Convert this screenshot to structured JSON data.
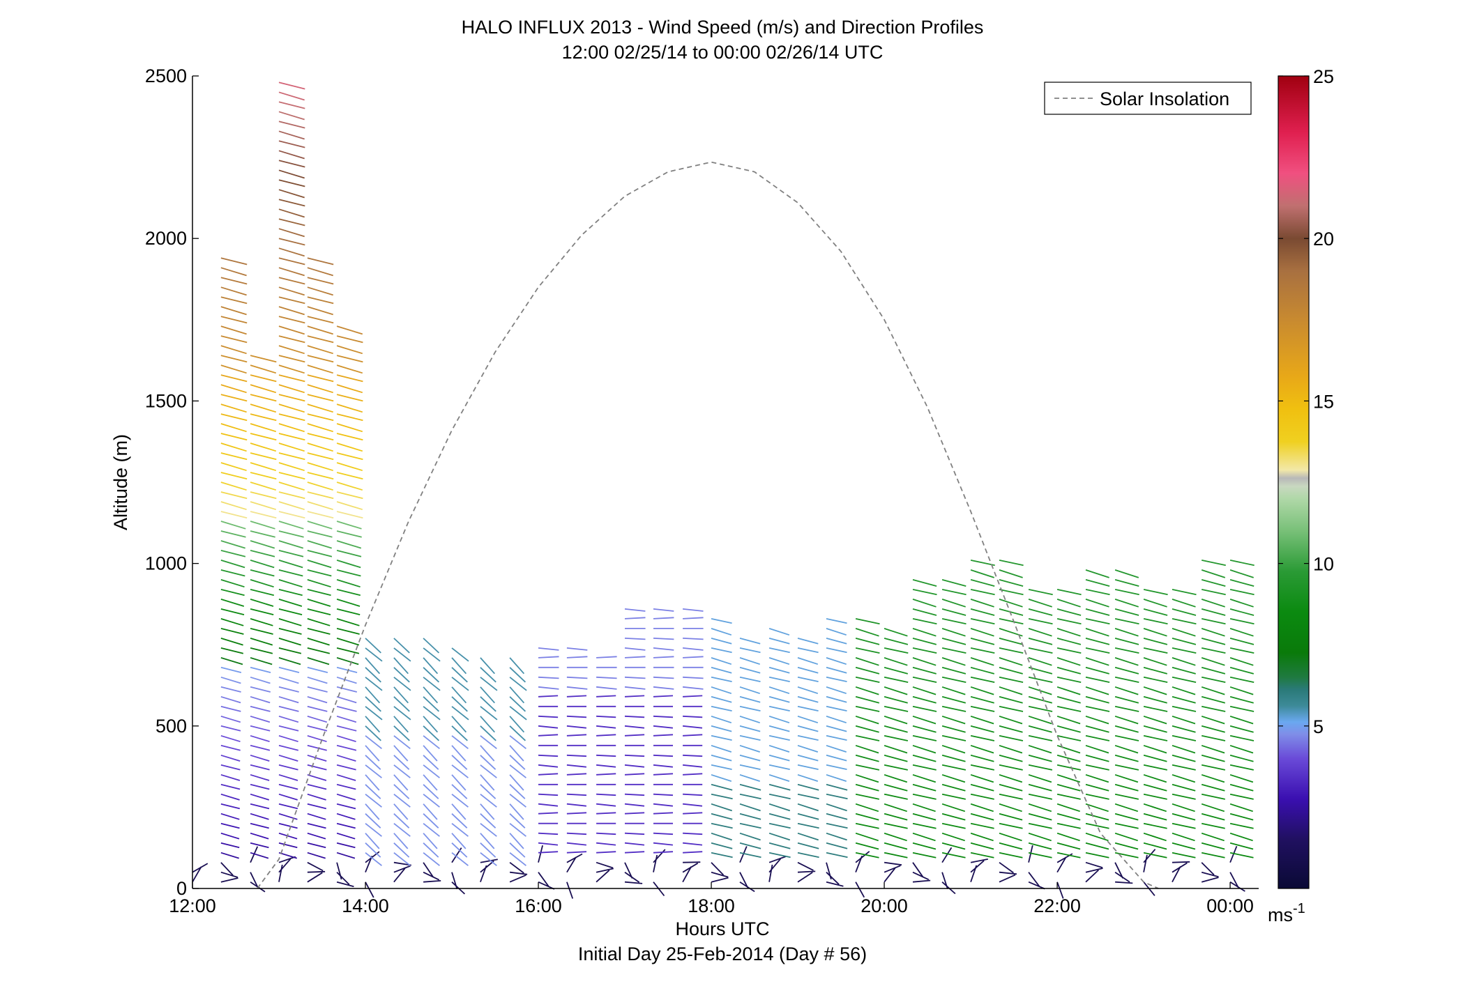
{
  "chart_data": {
    "type": "scatter",
    "title": "HALO INFLUX 2013 - Wind Speed (m/s) and Direction Profiles",
    "subtitle": "12:00 02/25/14 to 00:00 02/26/14  UTC",
    "xlabel": "Hours UTC",
    "xlabel2": "Initial Day 25-Feb-2014 (Day # 56)",
    "ylabel": "Altitude (m)",
    "xlim": [
      12,
      24.33
    ],
    "ylim": [
      0,
      2500
    ],
    "x_tick_labels": [
      "12:00",
      "14:00",
      "16:00",
      "18:00",
      "20:00",
      "22:00",
      "00:00"
    ],
    "x_tick_values": [
      12,
      14,
      16,
      18,
      20,
      22,
      24
    ],
    "y_ticks": [
      0,
      500,
      1000,
      1500,
      2000,
      2500
    ],
    "legend": {
      "placement": "top-right",
      "entries": [
        "Solar Insolation"
      ]
    },
    "colorbar": {
      "unit_base": "ms",
      "unit_exp": "-1",
      "range": [
        0,
        25
      ],
      "ticks": [
        5,
        10,
        15,
        20,
        25
      ]
    },
    "series": [
      {
        "name": "Solar Insolation",
        "color": "#808080",
        "style": "dashed",
        "x": [
          12.75,
          13.0,
          13.5,
          14.0,
          14.5,
          15.0,
          15.5,
          16.0,
          16.5,
          17.0,
          17.5,
          18.0,
          18.5,
          19.0,
          19.5,
          20.0,
          20.5,
          21.0,
          21.5,
          22.0,
          22.5,
          23.0,
          23.17
        ],
        "y": [
          0,
          90,
          460,
          810,
          1130,
          1410,
          1650,
          1850,
          2010,
          2130,
          2205,
          2235,
          2205,
          2110,
          1960,
          1750,
          1480,
          1160,
          820,
          470,
          170,
          20,
          0
        ]
      },
      {
        "name": "Wind profiles",
        "note_times": [
          12.0,
          12.33,
          12.67,
          13.0,
          13.33,
          13.67,
          14.0,
          14.33,
          14.67,
          15.0,
          15.33,
          15.67,
          16.0,
          16.33,
          16.67,
          17.0,
          17.33,
          17.67,
          18.0,
          18.33,
          18.67,
          19.0,
          19.33,
          19.67,
          20.0,
          20.33,
          20.67,
          21.0,
          21.33,
          21.67,
          22.0,
          22.33,
          22.67,
          23.0,
          23.33,
          23.67,
          24.0
        ],
        "top_altitude": [
          50,
          1950,
          1650,
          2500,
          1950,
          1750,
          780,
          790,
          780,
          760,
          730,
          730,
          740,
          740,
          720,
          880,
          870,
          860,
          850,
          790,
          810,
          780,
          840,
          840,
          800,
          960,
          950,
          1030,
          1020,
          940,
          920,
          990,
          980,
          940,
          920,
          1030,
          1010
        ]
      }
    ]
  }
}
